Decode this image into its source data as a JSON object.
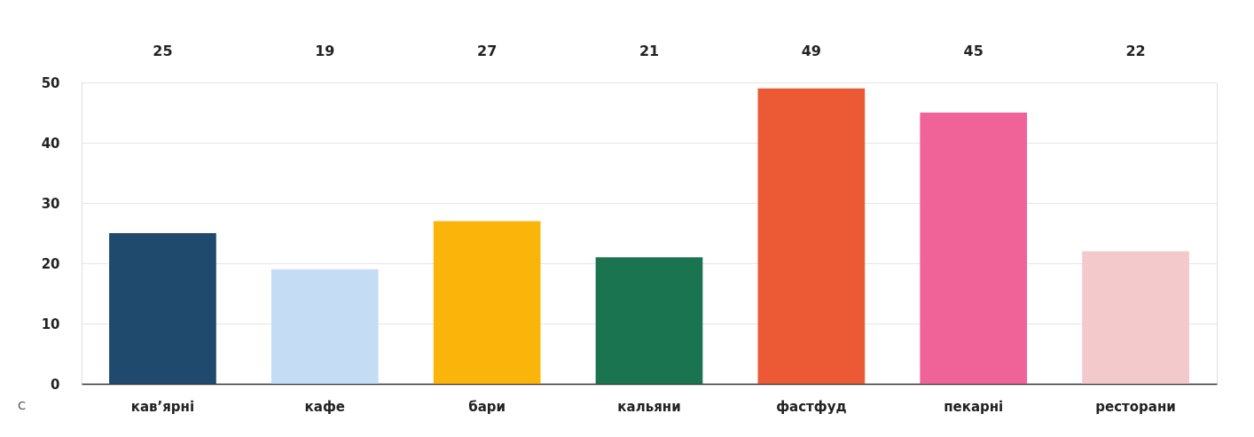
{
  "chart_data": {
    "type": "bar",
    "categories": [
      "кав’ярні",
      "кафе",
      "бари",
      "кальяни",
      "фастфуд",
      "пекарні",
      "ресторани"
    ],
    "values": [
      25,
      19,
      27,
      21,
      49,
      45,
      22
    ],
    "colors": [
      "#1f4a6e",
      "#c5dcf5",
      "#fbb40a",
      "#1b7450",
      "#eb5a35",
      "#f06399",
      "#f4c9cb"
    ],
    "ylim": [
      0,
      50
    ],
    "yticks": [
      0,
      10,
      20,
      30,
      40,
      50
    ],
    "grid": "y",
    "data_labels": true,
    "annotations": [
      "С"
    ]
  }
}
